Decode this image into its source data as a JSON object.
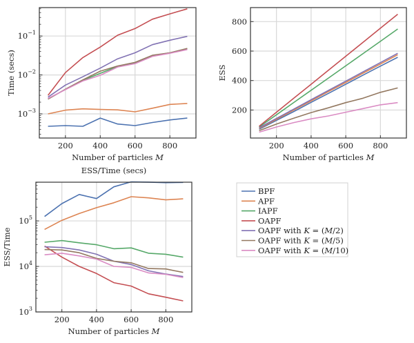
{
  "colors": {
    "BPF": "#4c72b0",
    "APF": "#dd8452",
    "IAPF": "#55a868",
    "OAPF": "#c44e52",
    "OAPF_M2": "#8172b3",
    "OAPF_M5": "#937860",
    "OAPF_M10": "#da8bc3"
  },
  "legend": {
    "entries": [
      {
        "key": "BPF",
        "label": "BPF"
      },
      {
        "key": "APF",
        "label": "APF"
      },
      {
        "key": "IAPF",
        "label": "IAPF"
      },
      {
        "key": "OAPF",
        "label": "OAPF"
      },
      {
        "key": "OAPF_M2",
        "label": "OAPF with K = (M/2)"
      },
      {
        "key": "OAPF_M5",
        "label": "OAPF with K = (M/5)"
      },
      {
        "key": "OAPF_M10",
        "label": "OAPF with K = (M/10)"
      }
    ]
  },
  "chart_data": [
    {
      "id": "time",
      "type": "line",
      "title": "",
      "xlabel": "Number of particles M",
      "ylabel": "Time (secs)",
      "yscale": "log",
      "xlim": [
        50,
        950
      ],
      "ylim_log10": [
        -3.62,
        -0.27
      ],
      "grid": true,
      "x": [
        100,
        200,
        300,
        400,
        500,
        600,
        700,
        800,
        900
      ],
      "xticks": [
        200,
        400,
        600,
        800
      ],
      "xtick_labels": [
        "200",
        "400",
        "600",
        "800"
      ],
      "yticks_log10": [
        -3,
        -2,
        -1
      ],
      "ytick_labels": [
        {
          "base": "10",
          "exp": "−3"
        },
        {
          "base": "10",
          "exp": "−2"
        },
        {
          "base": "10",
          "exp": "−1"
        }
      ],
      "series": [
        {
          "key": "BPF",
          "values": [
            0.00048,
            0.0005,
            0.00048,
            0.00078,
            0.00055,
            0.0005,
            0.0006,
            0.0007,
            0.00078
          ]
        },
        {
          "key": "APF",
          "values": [
            0.001,
            0.00125,
            0.00135,
            0.0013,
            0.00127,
            0.00113,
            0.0014,
            0.00175,
            0.00185
          ]
        },
        {
          "key": "IAPF",
          "values": [
            0.0024,
            0.0043,
            0.0073,
            0.011,
            0.0165,
            0.02,
            0.031,
            0.037,
            0.047
          ]
        },
        {
          "key": "OAPF",
          "values": [
            0.003,
            0.0115,
            0.028,
            0.052,
            0.105,
            0.155,
            0.27,
            0.37,
            0.5
          ]
        },
        {
          "key": "OAPF_M2",
          "values": [
            0.0027,
            0.0055,
            0.009,
            0.015,
            0.026,
            0.037,
            0.06,
            0.078,
            0.098
          ]
        },
        {
          "key": "OAPF_M5",
          "values": [
            0.0024,
            0.0043,
            0.0075,
            0.0125,
            0.017,
            0.021,
            0.032,
            0.037,
            0.048
          ]
        },
        {
          "key": "OAPF_M10",
          "values": [
            0.0025,
            0.0042,
            0.007,
            0.0098,
            0.016,
            0.0195,
            0.03,
            0.036,
            0.045
          ]
        }
      ]
    },
    {
      "id": "ess",
      "type": "line",
      "title": "",
      "xlabel": "Number of particles M",
      "ylabel": "ESS",
      "yscale": "linear",
      "xlim": [
        50,
        950
      ],
      "ylim": [
        10,
        895
      ],
      "grid": true,
      "x": [
        100,
        200,
        300,
        400,
        500,
        600,
        700,
        800,
        900
      ],
      "xticks": [
        200,
        400,
        600,
        800
      ],
      "xtick_labels": [
        "200",
        "400",
        "600",
        "800"
      ],
      "yticks": [
        200,
        400,
        600,
        800
      ],
      "ytick_labels": [
        "200",
        "400",
        "600",
        "800"
      ],
      "series": [
        {
          "key": "BPF",
          "values": [
            70,
            130,
            190,
            252,
            313,
            375,
            437,
            498,
            558
          ]
        },
        {
          "key": "APF",
          "values": [
            75,
            137,
            200,
            262,
            325,
            387,
            450,
            512,
            575
          ]
        },
        {
          "key": "IAPF",
          "values": [
            85,
            168,
            251,
            334,
            417,
            500,
            583,
            666,
            750
          ]
        },
        {
          "key": "OAPF",
          "values": [
            90,
            185,
            280,
            375,
            470,
            565,
            660,
            755,
            850
          ]
        },
        {
          "key": "OAPF_M2",
          "values": [
            80,
            143,
            206,
            270,
            333,
            396,
            459,
            522,
            585
          ]
        },
        {
          "key": "OAPF_M5",
          "values": [
            60,
            105,
            145,
            183,
            215,
            250,
            280,
            320,
            350
          ]
        },
        {
          "key": "OAPF_M10",
          "values": [
            50,
            85,
            115,
            140,
            160,
            185,
            210,
            235,
            250
          ]
        }
      ]
    },
    {
      "id": "ess_per_time",
      "type": "line",
      "title": "ESS/Time (secs)",
      "xlabel": "Number of particles M",
      "ylabel": "ESS/Time",
      "yscale": "log",
      "xlim": [
        50,
        950
      ],
      "ylim_log10": [
        3,
        5.85
      ],
      "grid": true,
      "x": [
        100,
        200,
        300,
        400,
        500,
        600,
        700,
        800,
        900
      ],
      "xticks": [
        200,
        400,
        600,
        800
      ],
      "xtick_labels": [
        "200",
        "400",
        "600",
        "800"
      ],
      "yticks_log10": [
        3,
        4,
        5
      ],
      "ytick_labels": [
        {
          "base": "10",
          "exp": "3"
        },
        {
          "base": "10",
          "exp": "4"
        },
        {
          "base": "10",
          "exp": "5"
        }
      ],
      "series": [
        {
          "key": "BPF",
          "values": [
            125000,
            240000,
            380000,
            310000,
            560000,
            720000,
            710000,
            690000,
            700000
          ]
        },
        {
          "key": "APF",
          "values": [
            65000,
            103000,
            145000,
            195000,
            250000,
            340000,
            320000,
            290000,
            305000
          ]
        },
        {
          "key": "IAPF",
          "values": [
            34000,
            37000,
            33000,
            30000,
            24500,
            25500,
            19500,
            18500,
            16000
          ]
        },
        {
          "key": "OAPF",
          "values": [
            28000,
            16000,
            10000,
            7000,
            4400,
            3700,
            2500,
            2100,
            1750
          ]
        },
        {
          "key": "OAPF_M2",
          "values": [
            27000,
            26000,
            23000,
            18500,
            13000,
            11000,
            8000,
            6800,
            6000
          ]
        },
        {
          "key": "OAPF_M5",
          "values": [
            23500,
            23000,
            20000,
            15000,
            13000,
            12000,
            9000,
            8800,
            7400
          ]
        },
        {
          "key": "OAPF_M10",
          "values": [
            18000,
            19500,
            17000,
            14500,
            10000,
            9500,
            7200,
            6700,
            5700
          ]
        }
      ]
    }
  ]
}
